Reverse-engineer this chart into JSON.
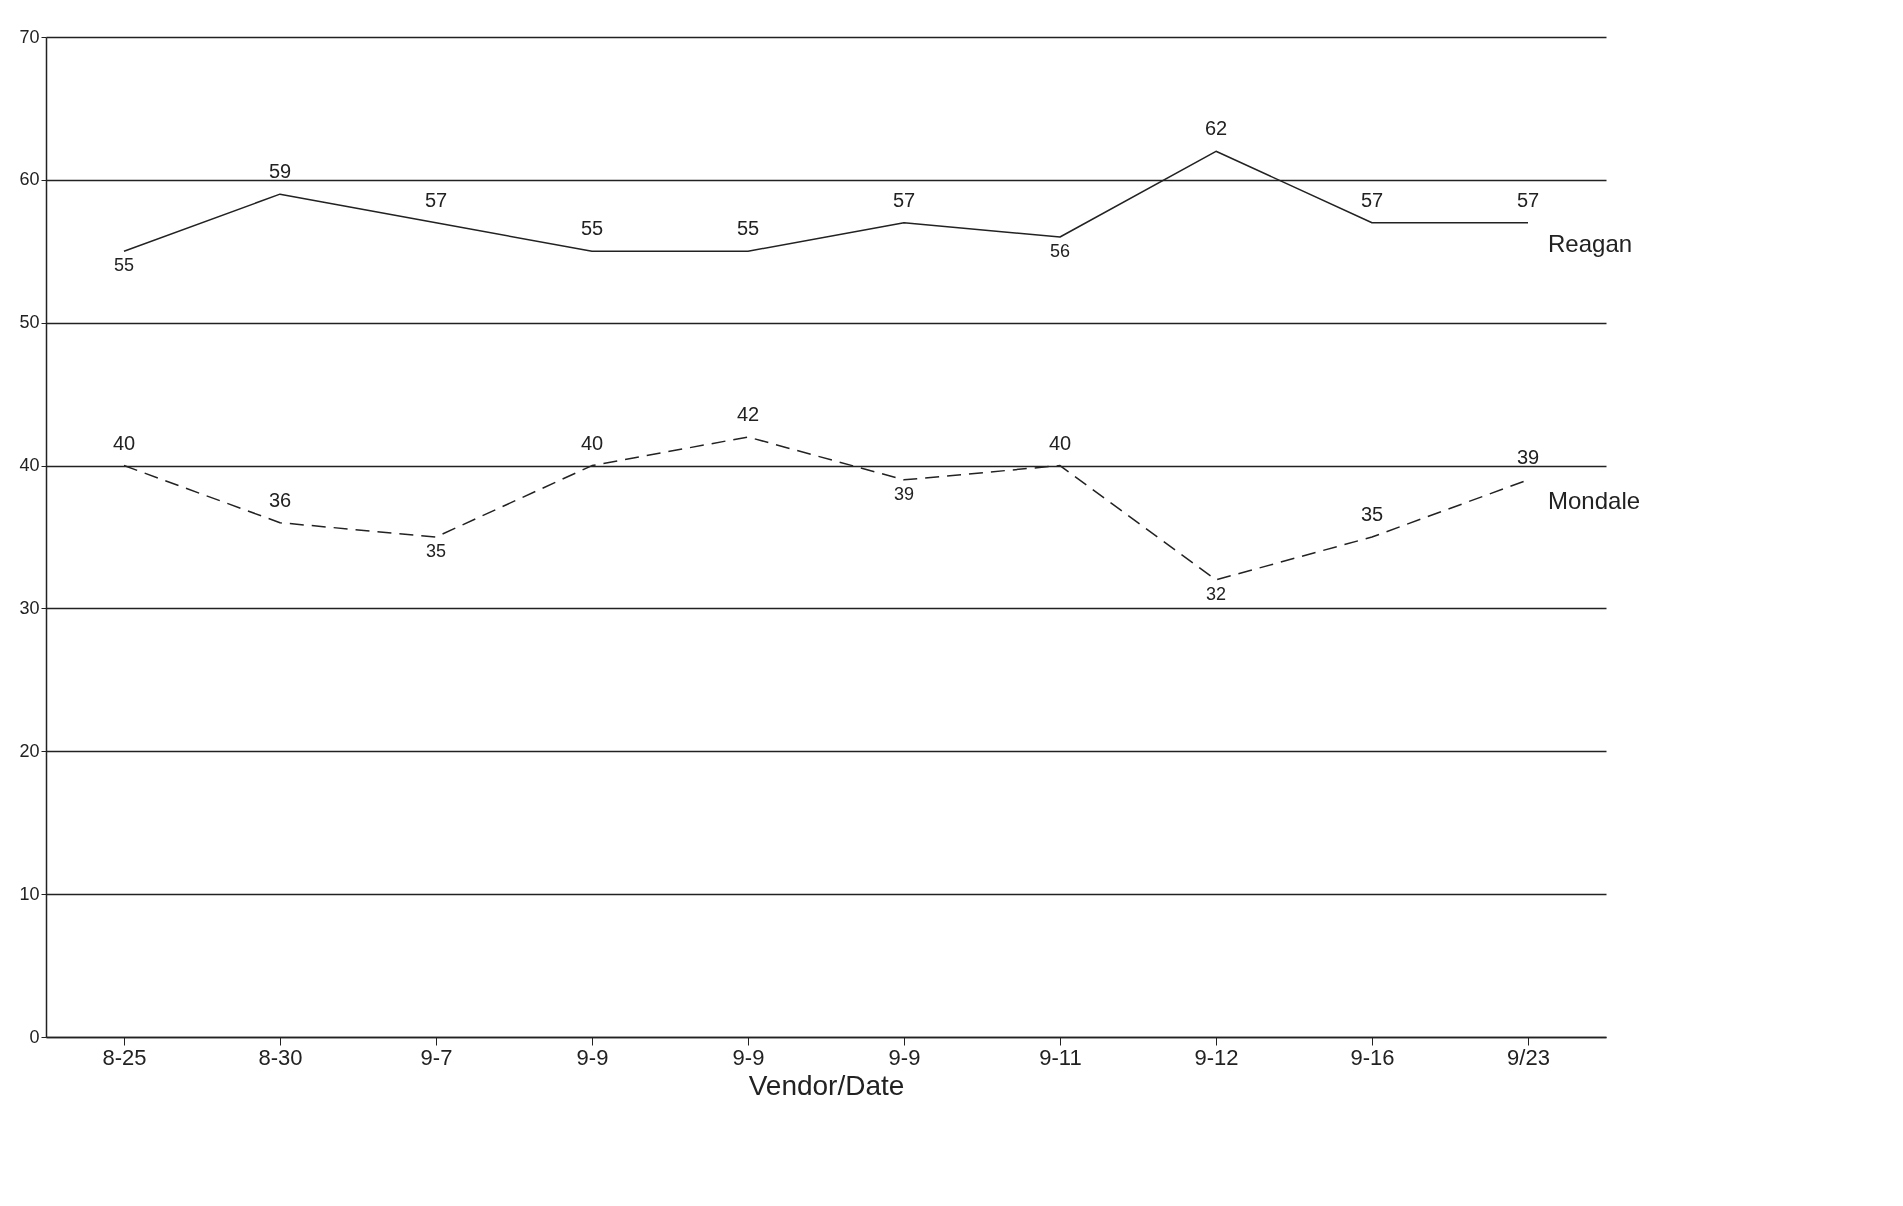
{
  "chart_data": {
    "type": "line",
    "xlabel": "Vendor/Date",
    "categories": [
      "8-25",
      "8-30",
      "9-7",
      "9-9",
      "9-9",
      "9-9",
      "9-11",
      "9-12",
      "9-16",
      "9/23"
    ],
    "series": [
      {
        "name": "Reagan",
        "color": "#222222",
        "line_style": "solid",
        "values": [
          55,
          59,
          57,
          55,
          55,
          57,
          56,
          62,
          57,
          57
        ]
      },
      {
        "name": "Mondale",
        "color": "#222222",
        "line_style": "dashed",
        "values": [
          40,
          36,
          35,
          40,
          42,
          39,
          40,
          32,
          35,
          39
        ]
      }
    ],
    "ylim": [
      0,
      70
    ],
    "yticks": [
      0,
      10,
      20,
      30,
      40,
      50,
      60,
      70
    ],
    "grid": "y",
    "data_labels": true,
    "marker": "none"
  }
}
